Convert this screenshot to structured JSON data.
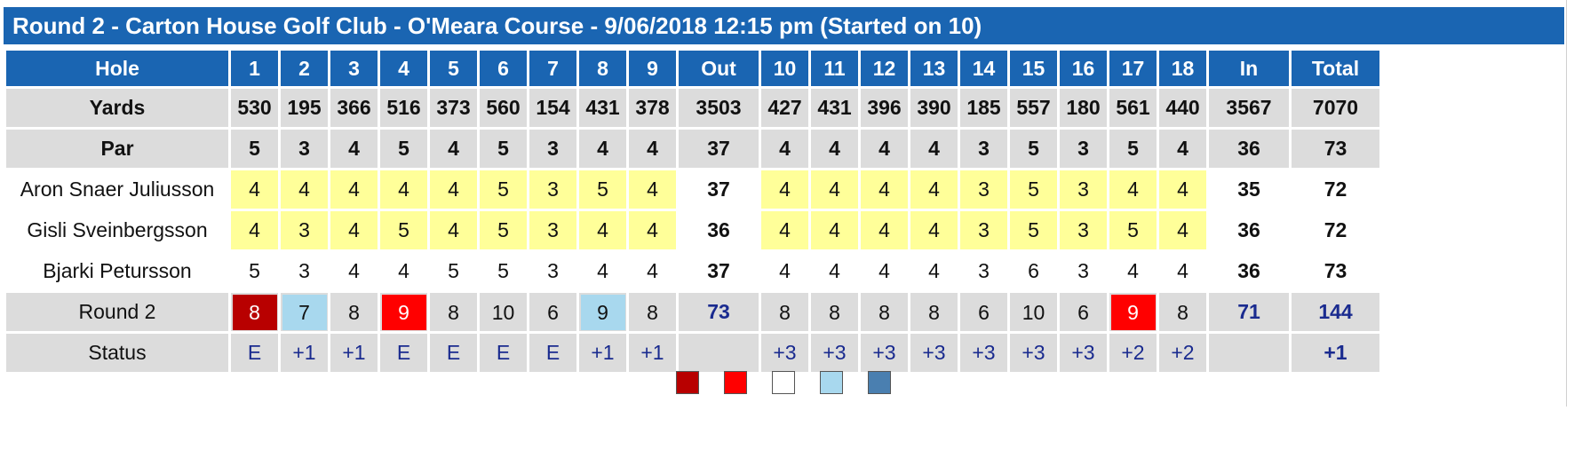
{
  "title": "Round 2 - Carton House Golf Club - O'Meara Course - 9/06/2018 12:15 pm (Started on 10)",
  "colors": {
    "header_blue": "#1a65b2",
    "double_bogey": "#b80000",
    "bogey": "#ff0000",
    "par": "#ffffff",
    "birdie": "#a8d8ee",
    "eagle": "#4a7fb0",
    "highlight_yellow": "#ffff99",
    "status_text": "#1a2b8f"
  },
  "header": {
    "hole_label": "Hole",
    "holes_front": [
      "1",
      "2",
      "3",
      "4",
      "5",
      "6",
      "7",
      "8",
      "9"
    ],
    "out_label": "Out",
    "holes_back": [
      "10",
      "11",
      "12",
      "13",
      "14",
      "15",
      "16",
      "17",
      "18"
    ],
    "in_label": "In",
    "total_label": "Total"
  },
  "yards": {
    "label": "Yards",
    "front": [
      "530",
      "195",
      "366",
      "516",
      "373",
      "560",
      "154",
      "431",
      "378"
    ],
    "out": "3503",
    "back": [
      "427",
      "431",
      "396",
      "390",
      "185",
      "557",
      "180",
      "561",
      "440"
    ],
    "in": "3567",
    "total": "7070"
  },
  "par": {
    "label": "Par",
    "front": [
      "5",
      "3",
      "4",
      "5",
      "4",
      "5",
      "3",
      "4",
      "4"
    ],
    "out": "37",
    "back": [
      "4",
      "4",
      "4",
      "4",
      "3",
      "5",
      "3",
      "5",
      "4"
    ],
    "in": "36",
    "total": "73"
  },
  "players": [
    {
      "name": "Aron Snaer Juliusson",
      "front": [
        "4",
        "4",
        "4",
        "4",
        "4",
        "5",
        "3",
        "5",
        "4"
      ],
      "out": "37",
      "back": [
        "4",
        "4",
        "4",
        "4",
        "3",
        "5",
        "3",
        "4",
        "4"
      ],
      "in": "35",
      "total": "72",
      "highlight": "yellow"
    },
    {
      "name": "Gisli Sveinbergsson",
      "front": [
        "4",
        "3",
        "4",
        "5",
        "4",
        "5",
        "3",
        "4",
        "4"
      ],
      "out": "36",
      "back": [
        "4",
        "4",
        "4",
        "4",
        "3",
        "5",
        "3",
        "5",
        "4"
      ],
      "in": "36",
      "total": "72",
      "highlight": "yellow"
    },
    {
      "name": "Bjarki Petursson",
      "front": [
        "5",
        "3",
        "4",
        "4",
        "5",
        "5",
        "3",
        "4",
        "4"
      ],
      "out": "37",
      "back": [
        "4",
        "4",
        "4",
        "4",
        "3",
        "6",
        "3",
        "4",
        "4"
      ],
      "in": "36",
      "total": "73",
      "highlight": "white"
    }
  ],
  "round": {
    "label": "Round 2",
    "front": [
      "8",
      "7",
      "8",
      "9",
      "8",
      "10",
      "6",
      "9",
      "8"
    ],
    "front_marks": [
      "double_bogey",
      "birdie",
      "none",
      "bogey",
      "none",
      "none",
      "none",
      "birdie",
      "none"
    ],
    "out": "73",
    "back": [
      "8",
      "8",
      "8",
      "8",
      "6",
      "10",
      "6",
      "9",
      "8"
    ],
    "back_marks": [
      "none",
      "none",
      "none",
      "none",
      "none",
      "none",
      "none",
      "bogey",
      "none"
    ],
    "in": "71",
    "total": "144"
  },
  "status": {
    "label": "Status",
    "front": [
      "E",
      "+1",
      "+1",
      "E",
      "E",
      "E",
      "E",
      "+1",
      "+1"
    ],
    "out": "",
    "back": [
      "+3",
      "+3",
      "+3",
      "+3",
      "+3",
      "+3",
      "+3",
      "+2",
      "+2"
    ],
    "in": "",
    "total": "+1"
  },
  "legend": [
    "double_bogey",
    "bogey",
    "par",
    "birdie",
    "eagle"
  ]
}
